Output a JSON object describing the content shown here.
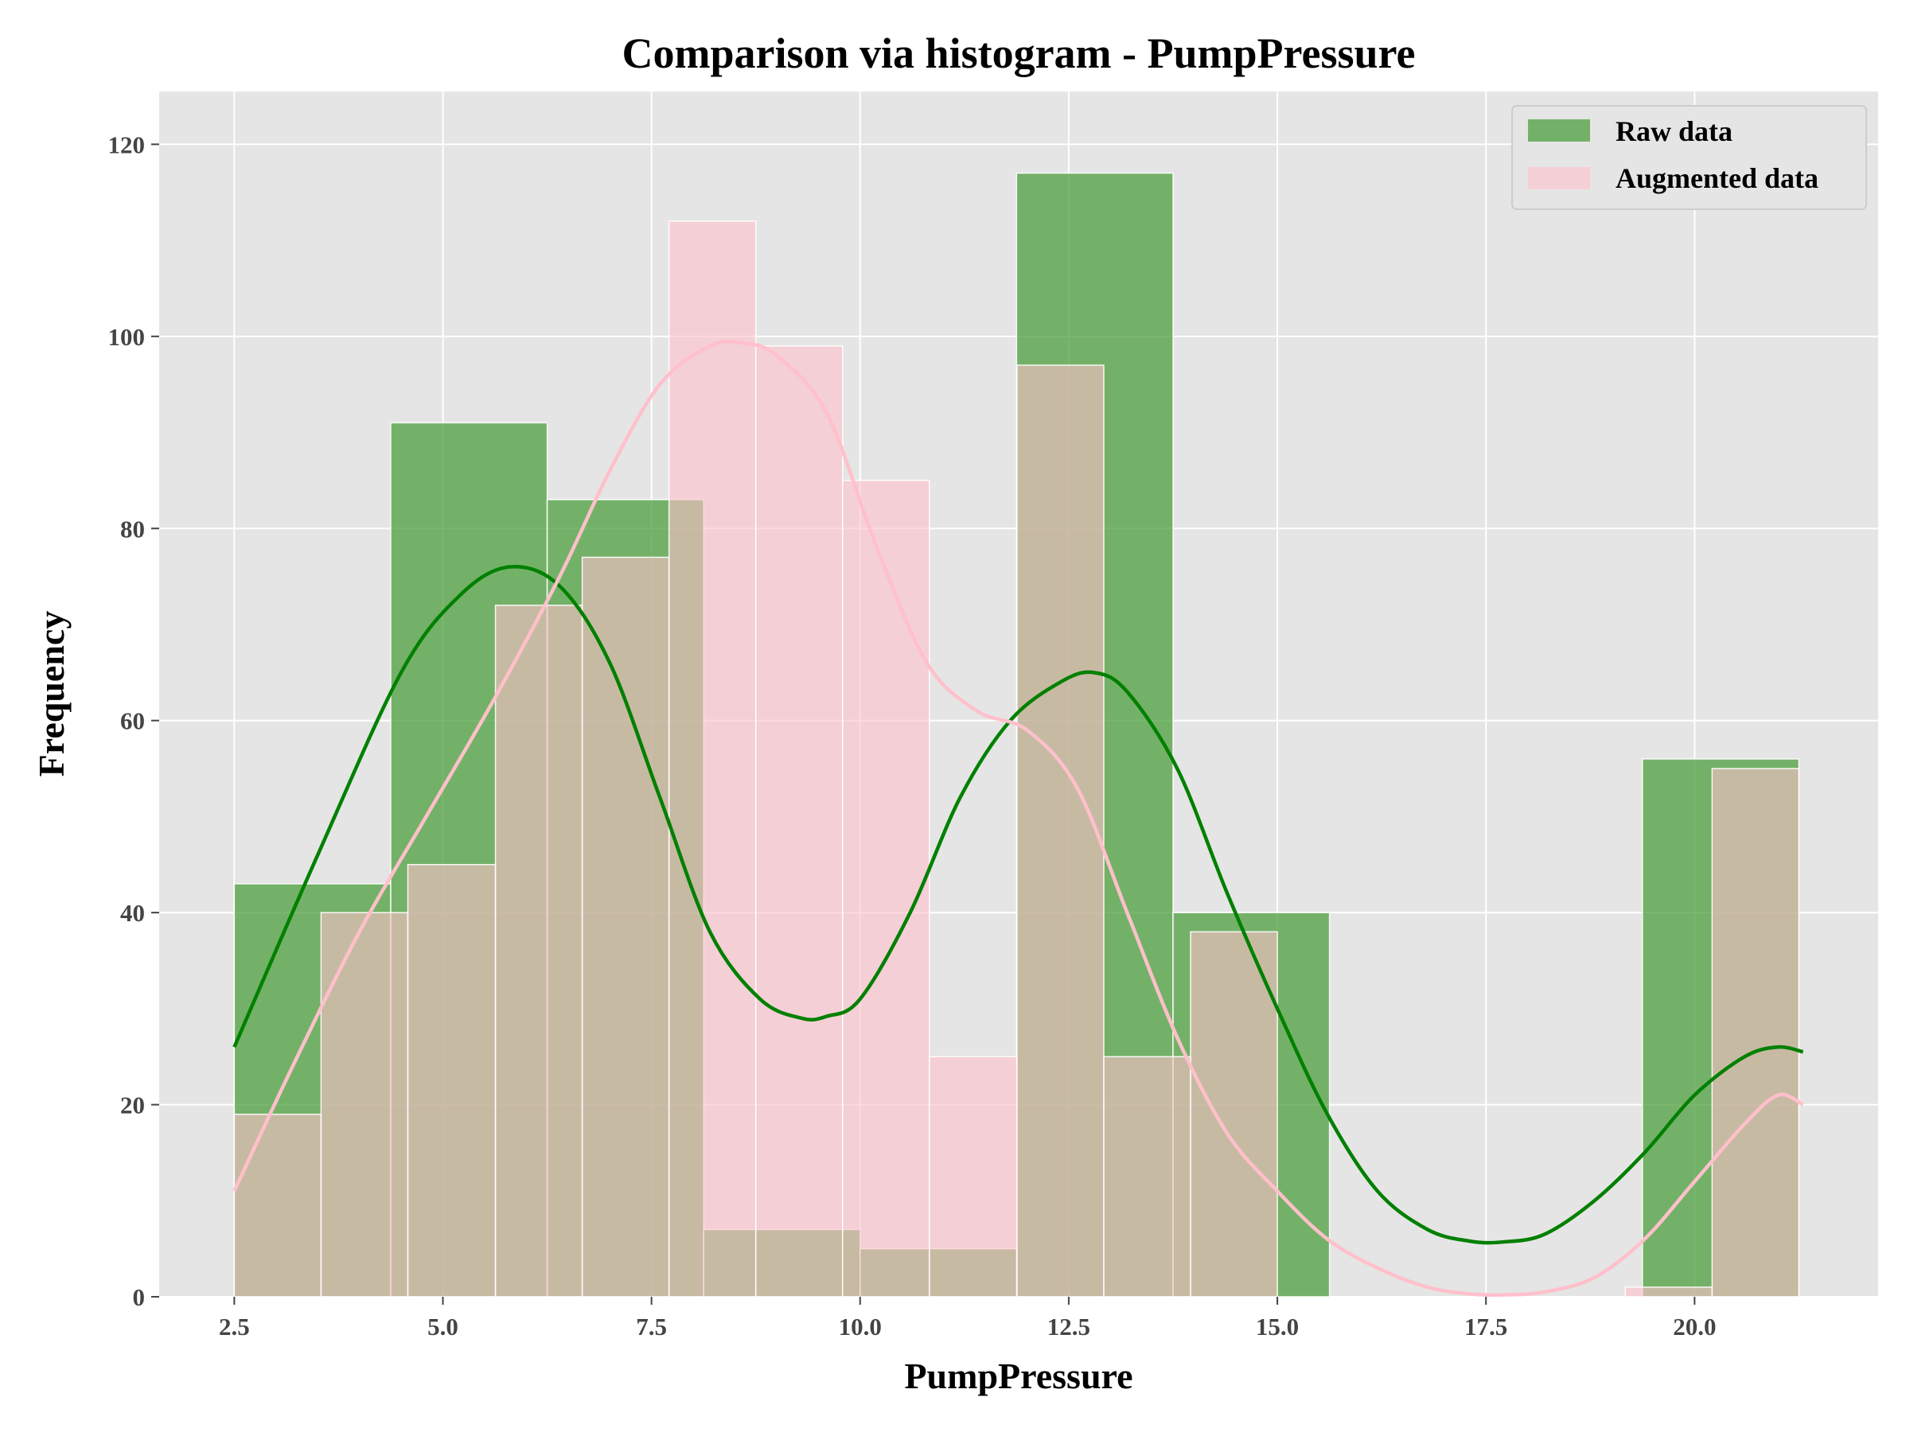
{
  "chart_data": {
    "type": "bar",
    "subtype": "overlaid-histogram-with-kde",
    "title": "Comparison via histogram - PumpPressure",
    "xlabel": "PumpPressure",
    "ylabel": "Frequency",
    "xlim": [
      1.6,
      22.2
    ],
    "ylim": [
      0,
      125.5
    ],
    "x_ticks": [
      2.5,
      5.0,
      7.5,
      10.0,
      12.5,
      15.0,
      17.5,
      20.0
    ],
    "x_tick_labels": [
      "2.5",
      "5.0",
      "7.5",
      "10.0",
      "12.5",
      "15.0",
      "17.5",
      "20.0"
    ],
    "y_ticks": [
      0,
      20,
      40,
      60,
      80,
      100,
      120
    ],
    "y_tick_labels": [
      "0",
      "20",
      "40",
      "60",
      "80",
      "100",
      "120"
    ],
    "grid": true,
    "background": "#e5e5e5",
    "legend_position": "top-right",
    "series": [
      {
        "name": "Raw data",
        "color": "#008000",
        "bar_color": "#4e9f3d",
        "bar_opacity": 0.75,
        "bins": [
          {
            "x0": 2.5,
            "x1": 4.375,
            "count": 43
          },
          {
            "x0": 4.375,
            "x1": 6.25,
            "count": 91
          },
          {
            "x0": 6.25,
            "x1": 8.125,
            "count": 83
          },
          {
            "x0": 8.125,
            "x1": 10.0,
            "count": 7
          },
          {
            "x0": 10.0,
            "x1": 11.875,
            "count": 5
          },
          {
            "x0": 11.875,
            "x1": 13.75,
            "count": 117
          },
          {
            "x0": 13.75,
            "x1": 15.625,
            "count": 40
          },
          {
            "x0": 15.625,
            "x1": 17.5,
            "count": 0
          },
          {
            "x0": 17.5,
            "x1": 19.375,
            "count": 0
          },
          {
            "x0": 19.375,
            "x1": 21.25,
            "count": 56
          }
        ],
        "kde": {
          "x": [
            2.5,
            3.5,
            4.5,
            5.2,
            5.8,
            6.4,
            7.0,
            7.6,
            8.2,
            8.8,
            9.3,
            9.6,
            10.0,
            10.6,
            11.2,
            11.8,
            12.4,
            12.8,
            13.2,
            13.8,
            14.4,
            15.0,
            15.6,
            16.2,
            16.8,
            17.3,
            17.7,
            18.2,
            18.8,
            19.4,
            20.0,
            20.6,
            21.0,
            21.3
          ],
          "y": [
            26,
            46,
            65,
            73,
            76,
            74,
            66,
            52,
            38,
            31,
            29,
            29.2,
            31,
            40,
            52,
            60,
            64,
            65,
            63,
            55,
            42,
            30,
            19,
            11,
            7,
            5.8,
            5.7,
            6.5,
            10,
            15,
            21,
            25,
            26,
            25.5
          ]
        }
      },
      {
        "name": "Augmented data",
        "color": "#ffc0cb",
        "bar_color": "#ffc0cb",
        "bar_opacity": 0.6,
        "bins": [
          {
            "x0": 2.5,
            "x1": 3.54,
            "count": 19
          },
          {
            "x0": 3.54,
            "x1": 4.58,
            "count": 40
          },
          {
            "x0": 4.58,
            "x1": 5.63,
            "count": 45
          },
          {
            "x0": 5.63,
            "x1": 6.67,
            "count": 72
          },
          {
            "x0": 6.67,
            "x1": 7.71,
            "count": 77
          },
          {
            "x0": 7.71,
            "x1": 8.75,
            "count": 112
          },
          {
            "x0": 8.75,
            "x1": 9.79,
            "count": 99
          },
          {
            "x0": 9.79,
            "x1": 10.83,
            "count": 85
          },
          {
            "x0": 10.83,
            "x1": 11.88,
            "count": 25
          },
          {
            "x0": 11.88,
            "x1": 12.92,
            "count": 97
          },
          {
            "x0": 12.92,
            "x1": 13.96,
            "count": 25
          },
          {
            "x0": 13.96,
            "x1": 15.0,
            "count": 38
          },
          {
            "x0": 15.0,
            "x1": 16.04,
            "count": 0
          },
          {
            "x0": 16.04,
            "x1": 17.08,
            "count": 0
          },
          {
            "x0": 17.08,
            "x1": 18.13,
            "count": 0
          },
          {
            "x0": 18.13,
            "x1": 19.17,
            "count": 0
          },
          {
            "x0": 19.17,
            "x1": 20.21,
            "count": 1
          },
          {
            "x0": 20.21,
            "x1": 21.25,
            "count": 55
          }
        ],
        "kde": {
          "x": [
            2.5,
            3.2,
            4.0,
            4.8,
            5.6,
            6.4,
            7.0,
            7.6,
            8.2,
            8.6,
            9.0,
            9.6,
            10.2,
            10.8,
            11.4,
            12.0,
            12.6,
            13.2,
            13.8,
            14.4,
            15.0,
            15.6,
            16.2,
            16.8,
            17.3,
            17.7,
            18.2,
            18.8,
            19.4,
            20.0,
            20.6,
            21.0,
            21.3
          ],
          "y": [
            11,
            24,
            38,
            50,
            62,
            75,
            86,
            95,
            99,
            99.3,
            98,
            92,
            78,
            66,
            61,
            59,
            53,
            40,
            27,
            17,
            11,
            6,
            3,
            1,
            0.3,
            0.2,
            0.5,
            2,
            6,
            12,
            18,
            21,
            20
          ]
        }
      }
    ]
  }
}
